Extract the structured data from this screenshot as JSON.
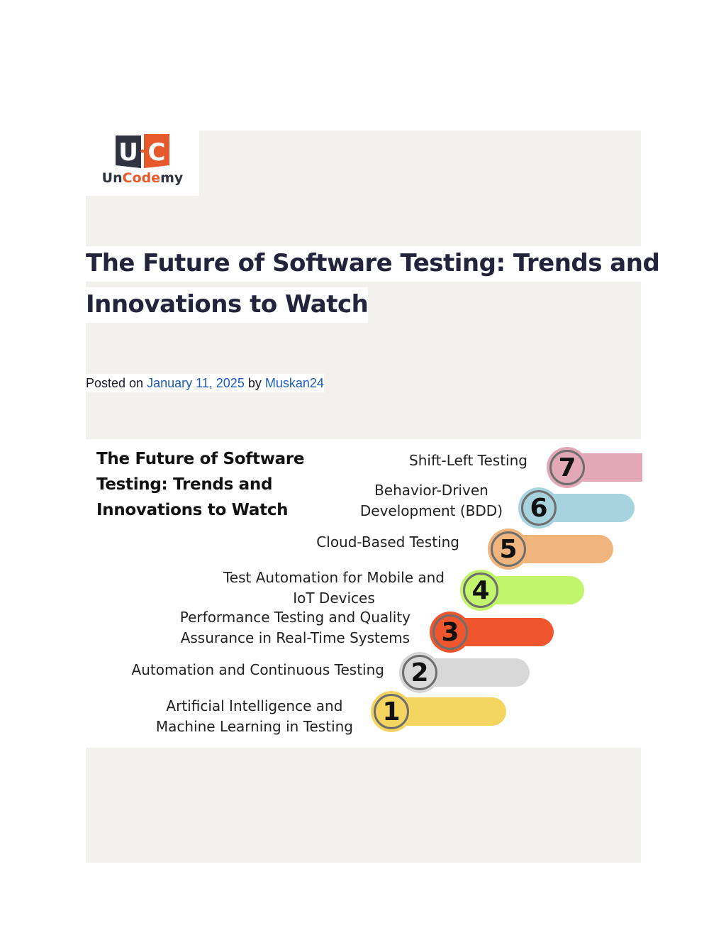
{
  "logo": {
    "mark_left": "U",
    "mark_right": "C",
    "name_part1": "Un",
    "name_part2": "Code",
    "name_part3": "my"
  },
  "article": {
    "title_line1": "The Future of Software Testing: Trends and",
    "title_line2": "Innovations to Watch",
    "meta_prefix": "Posted on ",
    "date": "January 11, 2025",
    "meta_by": " by ",
    "author": "Muskan24"
  },
  "infographic": {
    "title_lines": [
      "The Future of Software",
      "Testing: Trends and",
      "Innovations to Watch"
    ],
    "items": [
      {
        "number": "7",
        "label_lines": [
          "Shift-Left Testing"
        ],
        "color": "#e2a8b6"
      },
      {
        "number": "6",
        "label_lines": [
          "Behavior-Driven",
          "Development (BDD)"
        ],
        "color": "#a7d3df"
      },
      {
        "number": "5",
        "label_lines": [
          "Cloud-Based Testing"
        ],
        "color": "#efb57c"
      },
      {
        "number": "4",
        "label_lines": [
          "Test Automation for Mobile and",
          "IoT Devices"
        ],
        "color": "#c3f56c"
      },
      {
        "number": "3",
        "label_lines": [
          "Performance Testing and Quality",
          "Assurance in Real-Time Systems"
        ],
        "color": "#f0562d"
      },
      {
        "number": "2",
        "label_lines": [
          "Automation and Continuous Testing"
        ],
        "color": "#d8d8d8"
      },
      {
        "number": "1",
        "label_lines": [
          "Artificial Intelligence and",
          "Machine Learning in Testing"
        ],
        "color": "#f4d55f"
      }
    ]
  },
  "colors": {
    "page_panel": "#f2f1ed",
    "link": "#1d5cbf",
    "title": "#23233b",
    "logo_dark": "#2f3440",
    "logo_orange": "#e6592b"
  }
}
